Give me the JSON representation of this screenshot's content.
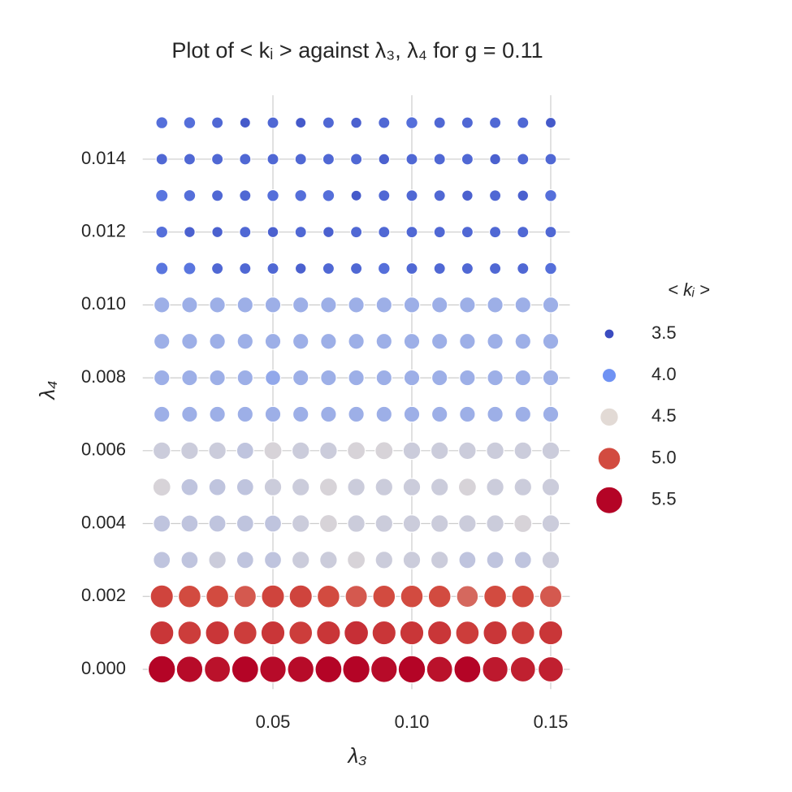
{
  "chart_data": {
    "type": "scatter",
    "title": "Plot of < kᵢ > against λ₃, λ₄ for g = 0.11",
    "x_label": "λ₃",
    "y_label": "λ₄",
    "x": [
      0.01,
      0.02,
      0.03,
      0.04,
      0.05,
      0.06,
      0.07,
      0.08,
      0.09,
      0.1,
      0.11,
      0.12,
      0.13,
      0.14,
      0.15
    ],
    "y": [
      0,
      0.001,
      0.002,
      0.003,
      0.004,
      0.005,
      0.006,
      0.007,
      0.008,
      0.009,
      0.01,
      0.011,
      0.012,
      0.013,
      0.014,
      0.015
    ],
    "values": [
      [
        5.55,
        5.45,
        5.4,
        5.5,
        5.45,
        5.45,
        5.5,
        5.55,
        5.45,
        5.55,
        5.4,
        5.5,
        5.35,
        5.3,
        5.3
      ],
      [
        5.15,
        5.1,
        5.15,
        5.1,
        5.15,
        5.1,
        5.15,
        5.2,
        5.15,
        5.15,
        5.15,
        5.1,
        5.15,
        5.1,
        5.15
      ],
      [
        5.05,
        5.0,
        5.0,
        4.95,
        5.05,
        5.05,
        5.0,
        4.95,
        5.0,
        5.0,
        5.0,
        4.9,
        5.0,
        5.0,
        4.95
      ],
      [
        4.35,
        4.35,
        4.4,
        4.35,
        4.35,
        4.4,
        4.4,
        4.45,
        4.4,
        4.4,
        4.4,
        4.35,
        4.35,
        4.35,
        4.4
      ],
      [
        4.35,
        4.35,
        4.35,
        4.35,
        4.35,
        4.4,
        4.45,
        4.4,
        4.4,
        4.4,
        4.4,
        4.4,
        4.4,
        4.45,
        4.4
      ],
      [
        4.45,
        4.35,
        4.35,
        4.35,
        4.4,
        4.4,
        4.45,
        4.4,
        4.4,
        4.4,
        4.4,
        4.45,
        4.4,
        4.4,
        4.4
      ],
      [
        4.4,
        4.4,
        4.4,
        4.35,
        4.45,
        4.4,
        4.4,
        4.45,
        4.45,
        4.4,
        4.4,
        4.4,
        4.4,
        4.4,
        4.4
      ],
      [
        4.2,
        4.2,
        4.2,
        4.2,
        4.2,
        4.2,
        4.2,
        4.2,
        4.2,
        4.2,
        4.2,
        4.2,
        4.2,
        4.2,
        4.2
      ],
      [
        4.2,
        4.2,
        4.2,
        4.2,
        4.15,
        4.2,
        4.2,
        4.2,
        4.2,
        4.2,
        4.2,
        4.2,
        4.2,
        4.2,
        4.2
      ],
      [
        4.2,
        4.2,
        4.2,
        4.2,
        4.2,
        4.2,
        4.2,
        4.2,
        4.2,
        4.2,
        4.2,
        4.2,
        4.2,
        4.2,
        4.2
      ],
      [
        4.2,
        4.2,
        4.2,
        4.2,
        4.2,
        4.2,
        4.2,
        4.2,
        4.2,
        4.2,
        4.2,
        4.2,
        4.2,
        4.2,
        4.2
      ],
      [
        3.8,
        3.8,
        3.7,
        3.7,
        3.7,
        3.65,
        3.7,
        3.7,
        3.75,
        3.7,
        3.7,
        3.7,
        3.7,
        3.7,
        3.75
      ],
      [
        3.75,
        3.65,
        3.65,
        3.7,
        3.65,
        3.7,
        3.65,
        3.7,
        3.7,
        3.7,
        3.7,
        3.7,
        3.7,
        3.7,
        3.7
      ],
      [
        3.8,
        3.75,
        3.7,
        3.7,
        3.75,
        3.75,
        3.75,
        3.6,
        3.7,
        3.7,
        3.7,
        3.65,
        3.7,
        3.65,
        3.75
      ],
      [
        3.7,
        3.7,
        3.7,
        3.7,
        3.7,
        3.7,
        3.7,
        3.7,
        3.65,
        3.7,
        3.7,
        3.7,
        3.65,
        3.7,
        3.7
      ],
      [
        3.75,
        3.75,
        3.7,
        3.6,
        3.7,
        3.6,
        3.7,
        3.65,
        3.7,
        3.75,
        3.7,
        3.7,
        3.7,
        3.7,
        3.6
      ]
    ],
    "xlim": [
      0.004,
      0.156
    ],
    "ylim": [
      -0.0005,
      0.0158
    ],
    "xticks": [
      0.05,
      {
        "value": 0.1,
        "label": "0.10"
      },
      0.15
    ],
    "yticks": [
      {
        "value": 0,
        "label": "0.000"
      },
      {
        "value": 0.002,
        "label": "0.002"
      },
      {
        "value": 0.004,
        "label": "0.004"
      },
      {
        "value": 0.006,
        "label": "0.006"
      },
      {
        "value": 0.008,
        "label": "0.008"
      },
      {
        "value": 0.01,
        "label": "0.010"
      },
      {
        "value": 0.012,
        "label": "0.012"
      },
      {
        "value": 0.014,
        "label": "0.014"
      }
    ],
    "grid": true,
    "legend": {
      "position": "right",
      "title": "< kᵢ >",
      "items": [
        {
          "value": 3.5,
          "color": "#3b4cc0"
        },
        {
          "value": 4,
          "label": "4.0",
          "color": "#6f92f3"
        },
        {
          "value": 4.5,
          "color": "#e2dad5"
        },
        {
          "value": 5,
          "label": "5.0",
          "color": "#d24b40"
        },
        {
          "value": 5.5,
          "color": "#b40426"
        }
      ]
    }
  }
}
